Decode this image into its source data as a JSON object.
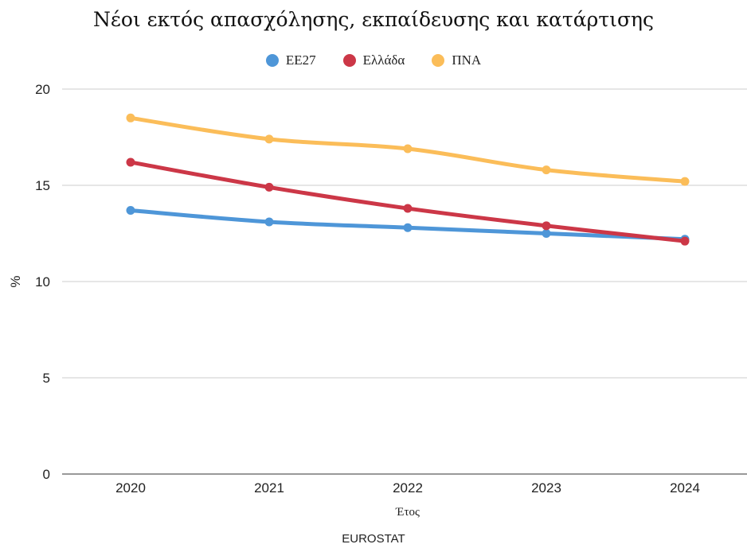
{
  "chart_data": {
    "type": "line",
    "title": "Νέοι εκτός απασχόλησης, εκπαίδευσης και κατάρτισης",
    "xlabel": "Έτος",
    "ylabel": "%",
    "categories": [
      "2020",
      "2021",
      "2022",
      "2023",
      "2024"
    ],
    "ylim": [
      0,
      20
    ],
    "yticks": [
      "0",
      "5",
      "10",
      "15",
      "20"
    ],
    "grid": true,
    "legend_position": "top-center",
    "series": [
      {
        "name": "ΕΕ27",
        "color": "#4e96d8",
        "values": [
          13.7,
          13.1,
          12.8,
          12.5,
          12.2
        ]
      },
      {
        "name": "Ελλάδα",
        "color": "#cc3747",
        "values": [
          16.2,
          14.9,
          13.8,
          12.9,
          12.1
        ]
      },
      {
        "name": "ΠΝΑ",
        "color": "#fbbd59",
        "values": [
          18.5,
          17.4,
          16.9,
          15.8,
          15.2
        ]
      }
    ],
    "source": "EUROSTAT"
  }
}
